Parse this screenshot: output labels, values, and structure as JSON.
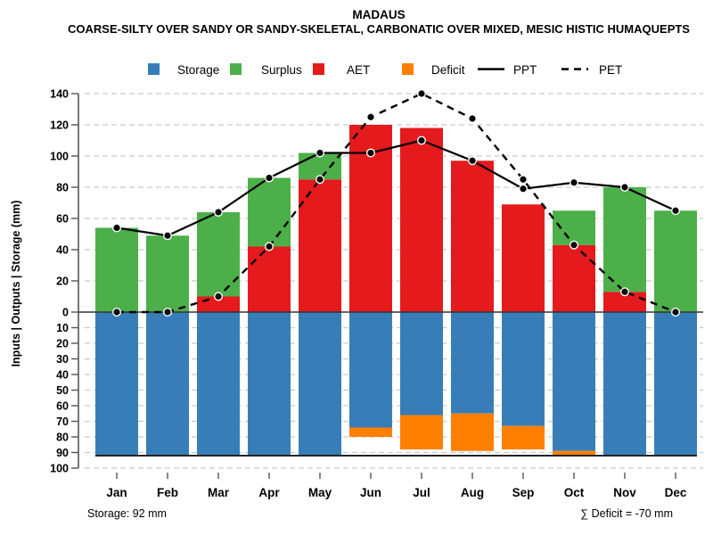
{
  "title": "MADAUS",
  "subtitle": "COARSE-SILTY OVER SANDY OR SANDY-SKELETAL, CARBONATIC OVER MIXED, MESIC HISTIC HUMAQUEPTS",
  "footer": {
    "storage_note": "Storage: 92 mm",
    "deficit_note": "∑ Deficit = -70 mm"
  },
  "legend": [
    {
      "label": "Storage",
      "swatch": "square",
      "color": "#377EB8"
    },
    {
      "label": "Surplus",
      "swatch": "square",
      "color": "#4DAF4A"
    },
    {
      "label": "AET",
      "swatch": "square",
      "color": "#E41A1C"
    },
    {
      "label": "Deficit",
      "swatch": "square",
      "color": "#FF7F00"
    },
    {
      "label": "PPT",
      "swatch": "solid-line",
      "color": "#000000"
    },
    {
      "label": "PET",
      "swatch": "dashed-line",
      "color": "#000000"
    }
  ],
  "colors": {
    "storage": "#377EB8",
    "surplus": "#4DAF4A",
    "aet": "#E41A1C",
    "deficit": "#FF7F00",
    "line": "#000000",
    "grid": "#C9C9C9",
    "axis": "#555555",
    "zero_line": "#333333",
    "storage_floor_line": "#222222"
  },
  "chart_data": {
    "type": "bar",
    "subtype": "water-balance-combo",
    "categories": [
      "Jan",
      "Feb",
      "Mar",
      "Apr",
      "May",
      "Jun",
      "Jul",
      "Aug",
      "Sep",
      "Oct",
      "Nov",
      "Dec"
    ],
    "series": [
      {
        "name": "AET",
        "type": "bar",
        "direction": "up",
        "color": "#E41A1C",
        "values": [
          0,
          0,
          10,
          42,
          85,
          120,
          118,
          97,
          69,
          43,
          13,
          0
        ]
      },
      {
        "name": "Surplus",
        "type": "bar",
        "direction": "up",
        "stacked_on": "AET",
        "color": "#4DAF4A",
        "values": [
          54,
          49,
          54,
          44,
          17,
          0,
          0,
          0,
          0,
          22,
          67,
          65
        ]
      },
      {
        "name": "Storage",
        "type": "bar",
        "direction": "down",
        "color": "#377EB8",
        "values": [
          92,
          92,
          92,
          92,
          92,
          74,
          66,
          65,
          73,
          89,
          92,
          92
        ]
      },
      {
        "name": "Deficit",
        "type": "bar",
        "direction": "down",
        "stacked_on": "Storage",
        "color": "#FF7F00",
        "values": [
          0,
          0,
          0,
          0,
          0,
          6,
          22,
          24,
          15,
          3,
          0,
          0
        ]
      },
      {
        "name": "PPT",
        "type": "line",
        "line_style": "solid",
        "color": "#000000",
        "values": [
          54,
          49,
          64,
          86,
          102,
          102,
          110,
          97,
          79,
          83,
          80,
          65
        ]
      },
      {
        "name": "PET",
        "type": "line",
        "line_style": "dashed",
        "color": "#000000",
        "values": [
          0,
          0,
          10,
          42,
          85,
          125,
          140,
          124,
          85,
          43,
          13,
          0
        ]
      }
    ],
    "ylabel": "Inputs | Outputs | Storage  (mm)",
    "y_upper_ticks": [
      0,
      20,
      40,
      60,
      80,
      100,
      120,
      140
    ],
    "y_lower_ticks": [
      10,
      20,
      30,
      40,
      50,
      60,
      70,
      80,
      90,
      100
    ],
    "y_upper_range": [
      0,
      140
    ],
    "y_lower_range": [
      0,
      100
    ],
    "grid": "dashed-horizontal",
    "storage_max_mm": 92,
    "deficit_total_mm": -70
  }
}
